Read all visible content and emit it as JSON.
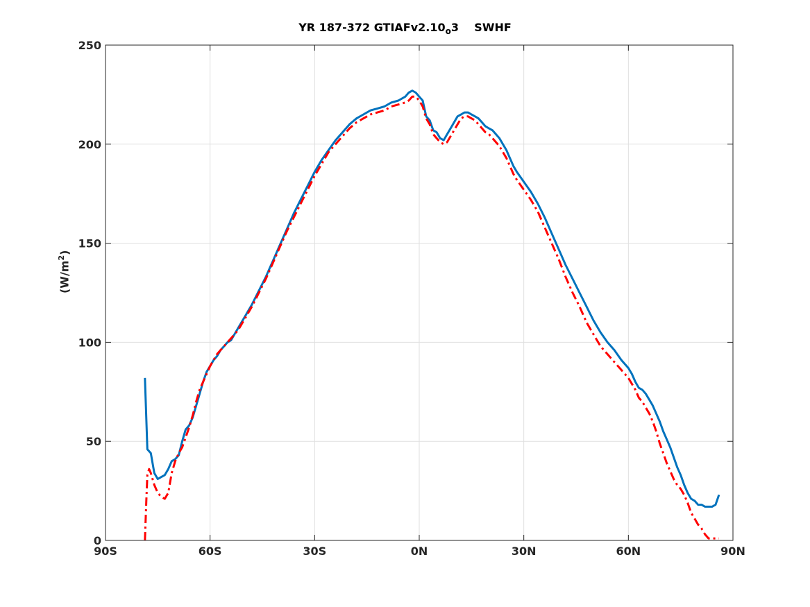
{
  "chart_data": {
    "type": "line",
    "title": {
      "main": "YR 187-372 GTIAFv2.10",
      "sub": "o",
      "tail": "3",
      "field": "SWHF"
    },
    "ylabel": {
      "pre": "(W/m",
      "sup": "2",
      "post": ")"
    },
    "xlabel": "",
    "xlim": [
      -90,
      90
    ],
    "ylim": [
      0,
      250
    ],
    "xticks": [
      -90,
      -60,
      -30,
      0,
      30,
      60,
      90
    ],
    "xtick_labels": [
      "90S",
      "60S",
      "30S",
      "0N",
      "30N",
      "60N",
      "90N"
    ],
    "yticks": [
      0,
      50,
      100,
      150,
      200,
      250
    ],
    "ytick_labels": [
      "0",
      "50",
      "100",
      "150",
      "200",
      "250"
    ],
    "grid": true,
    "series": [
      {
        "color": "#0072bd",
        "style": "solid",
        "x": [
          -78.7,
          -78,
          -77,
          -76,
          -75,
          -74,
          -73,
          -72,
          -71,
          -70,
          -69,
          -68,
          -67,
          -66,
          -65,
          -64,
          -63,
          -62,
          -61,
          -60,
          -59,
          -58,
          -57,
          -56,
          -55,
          -54,
          -52,
          -50,
          -48,
          -46,
          -44,
          -42,
          -40,
          -38,
          -36,
          -34,
          -32,
          -30,
          -28,
          -26,
          -24,
          -22,
          -20,
          -18,
          -16,
          -14,
          -12,
          -10,
          -8,
          -6,
          -4,
          -3,
          -2,
          -1,
          0,
          1,
          2,
          3,
          4,
          5,
          6,
          7,
          8,
          9,
          10,
          11,
          12,
          13,
          14,
          15,
          16,
          17,
          18,
          19,
          20,
          21,
          22,
          23,
          24,
          25,
          26,
          27,
          28,
          30,
          32,
          34,
          36,
          38,
          40,
          42,
          44,
          46,
          48,
          50,
          52,
          54,
          56,
          58,
          60,
          61,
          62,
          63,
          64,
          65,
          66,
          67,
          68,
          69,
          70,
          71,
          72,
          73,
          74,
          75,
          76,
          77,
          78,
          79,
          80,
          81,
          82,
          83,
          84,
          85,
          86
        ],
        "y": [
          82,
          46,
          44,
          34,
          31,
          32,
          33,
          36,
          40,
          41,
          43,
          50,
          56,
          58,
          62,
          68,
          74,
          80,
          85,
          88,
          91,
          93,
          96,
          98,
          100,
          101,
          107,
          113,
          119,
          126,
          133,
          141,
          149,
          157,
          165,
          172,
          179,
          186,
          192,
          197,
          202,
          206,
          210,
          213,
          215,
          217,
          218,
          219,
          221,
          222,
          224,
          226,
          227,
          226,
          224,
          222,
          214,
          212,
          207,
          206,
          203,
          202,
          205,
          208,
          211,
          214,
          215,
          216,
          216,
          215,
          214,
          213,
          211,
          209,
          208,
          207,
          205,
          203,
          200,
          197,
          193,
          189,
          186,
          181,
          176,
          170,
          163,
          155,
          147,
          139,
          132,
          125,
          118,
          111,
          105,
          100,
          96,
          91,
          87,
          84,
          80,
          77,
          76,
          74,
          71,
          68,
          64,
          60,
          55,
          51,
          47,
          42,
          37,
          33,
          28,
          24,
          21,
          20,
          18,
          18,
          17,
          17,
          17,
          18,
          23
        ]
      },
      {
        "color": "#ff0000",
        "style": "dashdot",
        "x": [
          -78.7,
          -78.3,
          -78,
          -77.5,
          -77,
          -76,
          -75,
          -74,
          -73,
          -72,
          -71,
          -70,
          -69,
          -68,
          -67,
          -66,
          -65,
          -64,
          -63,
          -62,
          -61,
          -60,
          -59,
          -58,
          -57,
          -56,
          -55,
          -54,
          -52,
          -50,
          -48,
          -46,
          -44,
          -42,
          -40,
          -38,
          -36,
          -34,
          -32,
          -30,
          -28,
          -26,
          -24,
          -22,
          -20,
          -18,
          -16,
          -14,
          -12,
          -10,
          -8,
          -6,
          -4,
          -3,
          -2,
          -1,
          0,
          1,
          2,
          3,
          4,
          5,
          6,
          7,
          8,
          9,
          10,
          11,
          12,
          13,
          14,
          15,
          16,
          17,
          18,
          19,
          20,
          21,
          22,
          23,
          24,
          25,
          26,
          27,
          28,
          30,
          32,
          34,
          36,
          38,
          40,
          42,
          44,
          46,
          48,
          50,
          52,
          54,
          56,
          58,
          60,
          61,
          62,
          63,
          64,
          65,
          66,
          67,
          68,
          69,
          70,
          71,
          72,
          73,
          74,
          75,
          76,
          77,
          78,
          79,
          80,
          81,
          82,
          83,
          84,
          85,
          86
        ],
        "y": [
          0,
          20,
          33,
          36,
          34,
          28,
          24,
          22,
          21,
          24,
          34,
          40,
          44,
          47,
          52,
          57,
          63,
          70,
          76,
          80,
          84,
          88,
          91,
          94,
          96,
          98,
          100,
          102,
          106,
          112,
          118,
          125,
          132,
          140,
          148,
          156,
          163,
          170,
          177,
          184,
          190,
          196,
          200,
          204,
          208,
          211,
          213,
          215,
          216,
          217,
          219,
          220,
          221,
          222,
          224,
          224,
          222,
          219,
          213,
          210,
          205,
          203,
          201,
          200,
          201,
          204,
          207,
          210,
          213,
          214,
          214,
          213,
          212,
          210,
          208,
          206,
          205,
          203,
          201,
          199,
          196,
          193,
          189,
          185,
          182,
          177,
          172,
          166,
          158,
          150,
          142,
          133,
          125,
          118,
          110,
          104,
          98,
          94,
          90,
          86,
          82,
          79,
          76,
          72,
          70,
          67,
          64,
          60,
          55,
          49,
          44,
          39,
          35,
          31,
          28,
          26,
          23,
          19,
          14,
          11,
          8,
          6,
          3,
          1,
          1,
          1,
          1
        ]
      }
    ]
  }
}
